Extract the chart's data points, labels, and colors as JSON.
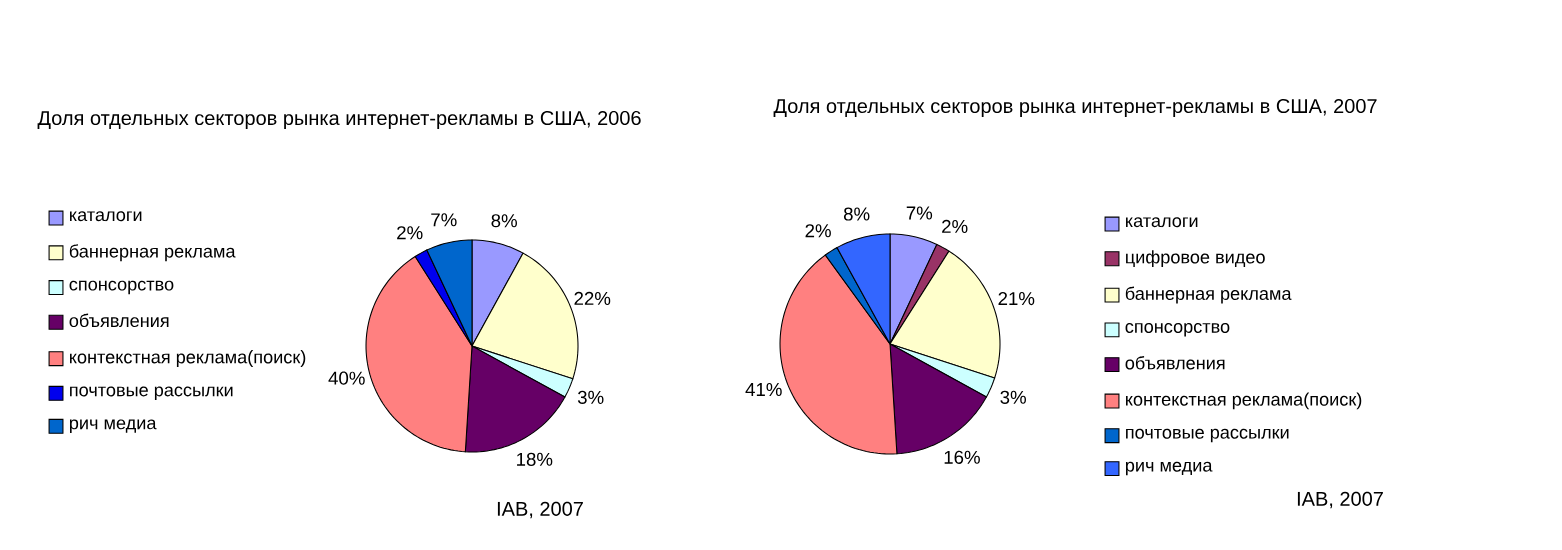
{
  "chart_data": [
    {
      "type": "pie",
      "title": "Доля отдельных секторов рынка интернет-рекламы в США, 2006",
      "categories": [
        "каталоги",
        "баннерная реклама",
        "спонсорство",
        "объявления",
        "контекстная реклама(поиск)",
        "почтовые рассылки",
        "рич медиа"
      ],
      "values": [
        8,
        22,
        3,
        18,
        40,
        2,
        7
      ],
      "colors": [
        "#9999ff",
        "#ffffcc",
        "#ccffff",
        "#660066",
        "#ff8080",
        "#0000ee",
        "#0066cc"
      ],
      "value_labels": [
        "8%",
        "22%",
        "3%",
        "18%",
        "40%",
        "2%",
        "7%"
      ],
      "legend": "left",
      "annotations": [
        "IAB, 2007"
      ]
    },
    {
      "type": "pie",
      "title": "Доля отдельных секторов рынка интернет-рекламы в США, 2007",
      "categories": [
        "каталоги",
        "цифровое видео",
        "баннерная реклама",
        "спонсорство",
        "объявления",
        "контекстная реклама(поиск)",
        "почтовые рассылки",
        "рич медиа"
      ],
      "values": [
        7,
        2,
        21,
        3,
        16,
        41,
        2,
        8
      ],
      "colors": [
        "#9999ff",
        "#993366",
        "#ffffcc",
        "#ccffff",
        "#660066",
        "#ff8080",
        "#0066cc",
        "#3366ff"
      ],
      "value_labels": [
        "7%",
        "2%",
        "21%",
        "3%",
        "16%",
        "41%",
        "2%",
        "8%"
      ],
      "legend": "right",
      "annotations": [
        "IAB, 2007"
      ]
    }
  ]
}
